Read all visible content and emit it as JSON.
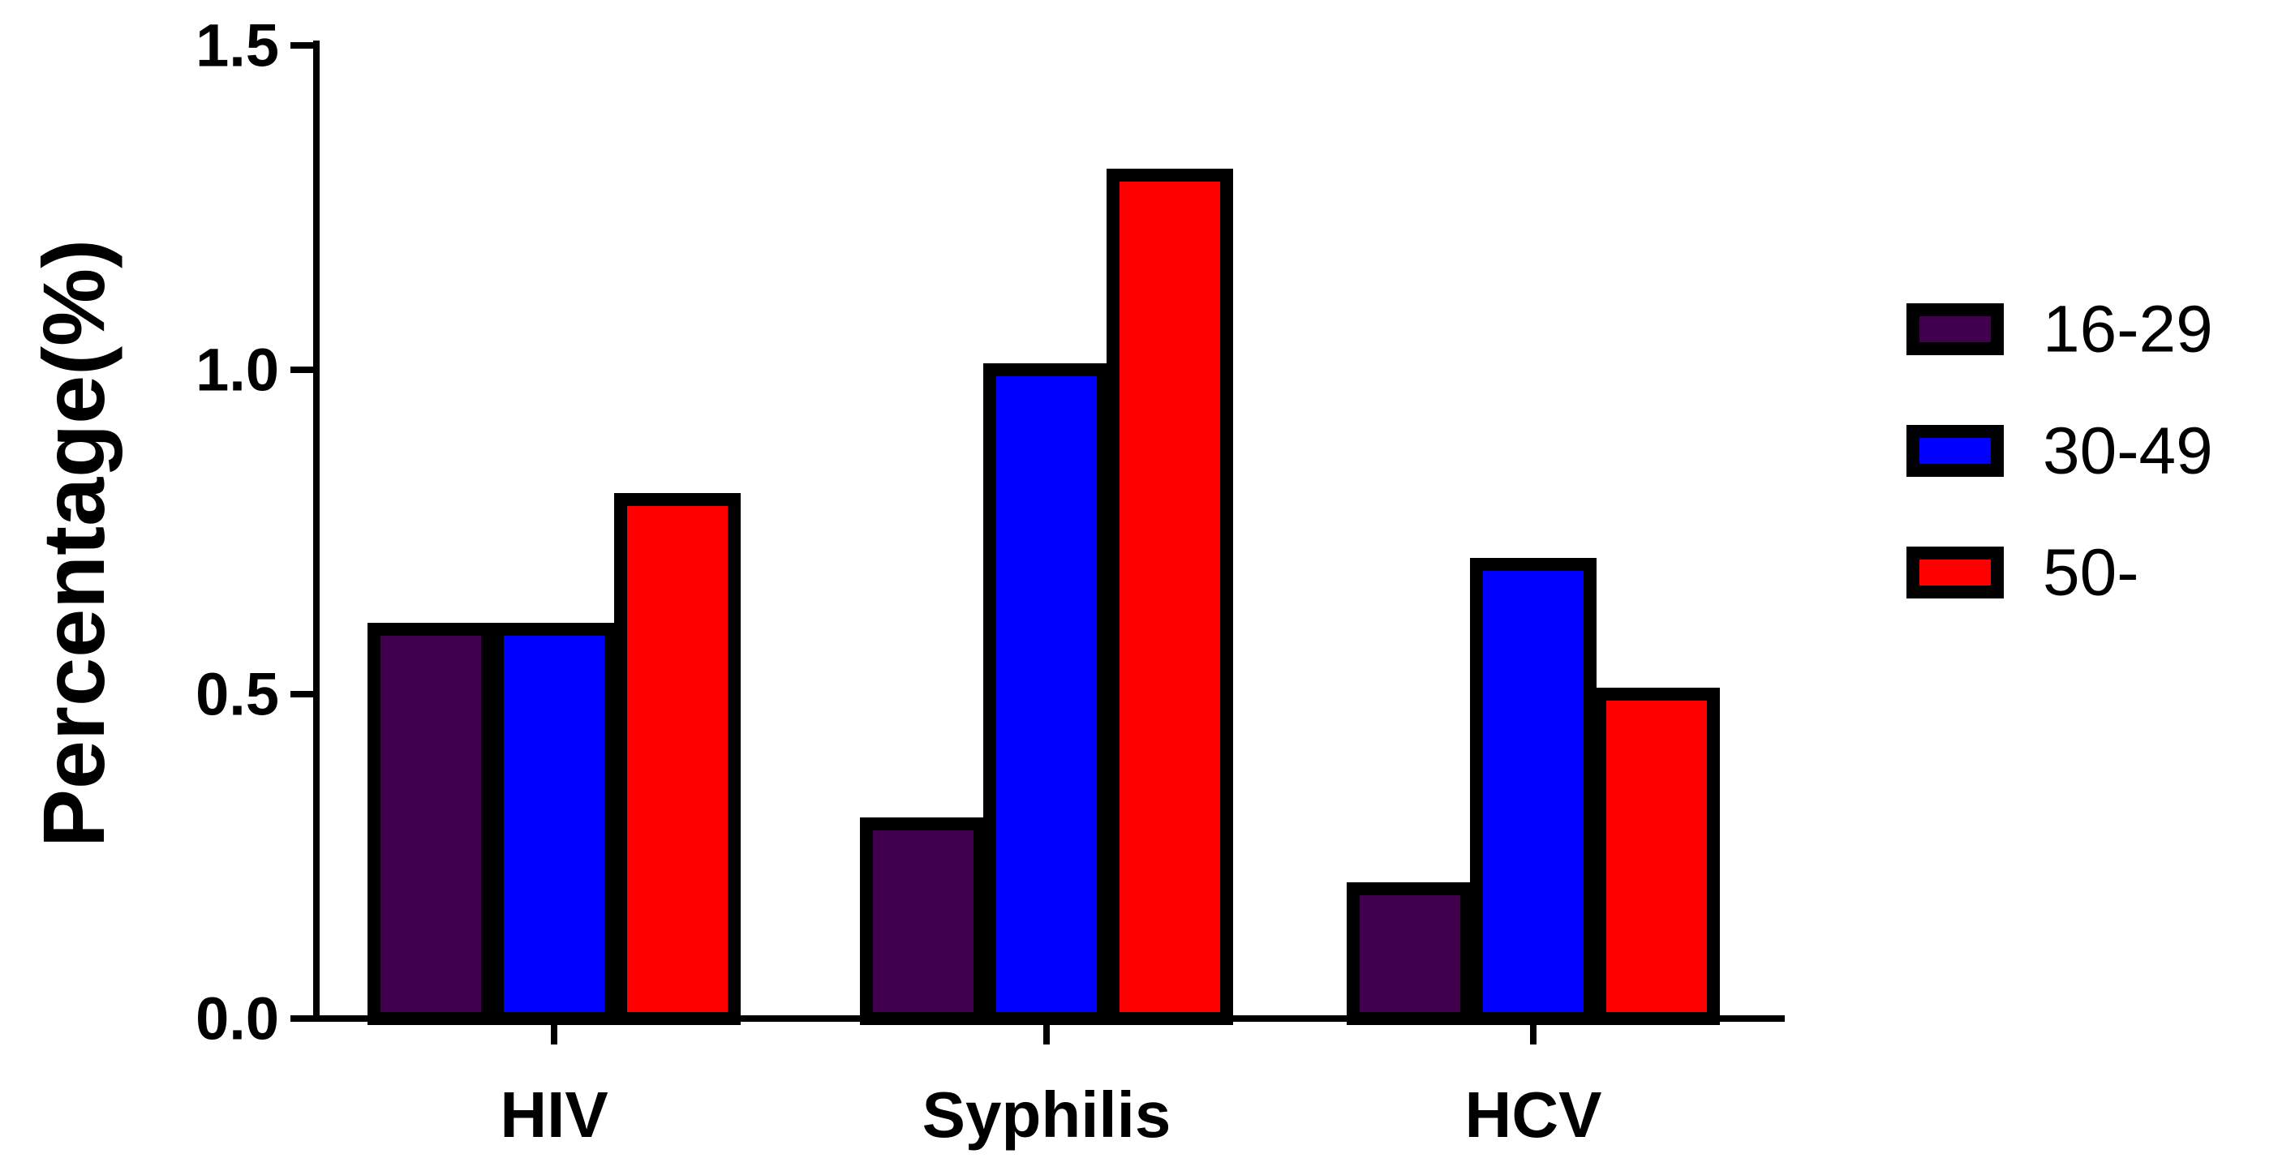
{
  "chart_data": {
    "type": "bar",
    "title": "",
    "xlabel": "",
    "ylabel": "Percentage(%)",
    "categories": [
      "HIV",
      "Syphilis",
      "HCV"
    ],
    "series": [
      {
        "name": "16-29",
        "color": "#40004d",
        "values": [
          0.6,
          0.3,
          0.2
        ]
      },
      {
        "name": "30-49",
        "color": "#0000ff",
        "values": [
          0.6,
          1.0,
          0.7
        ]
      },
      {
        "name": "50-",
        "color": "#ff0000",
        "values": [
          0.8,
          1.3,
          0.5
        ]
      }
    ],
    "ylim": [
      0,
      1.5
    ],
    "yticks": [
      0.0,
      0.5,
      1.0,
      1.5
    ],
    "ytick_labels": [
      "0.0",
      "0.5",
      "1.0",
      "1.5"
    ],
    "grid": false,
    "legend_position": "right"
  }
}
